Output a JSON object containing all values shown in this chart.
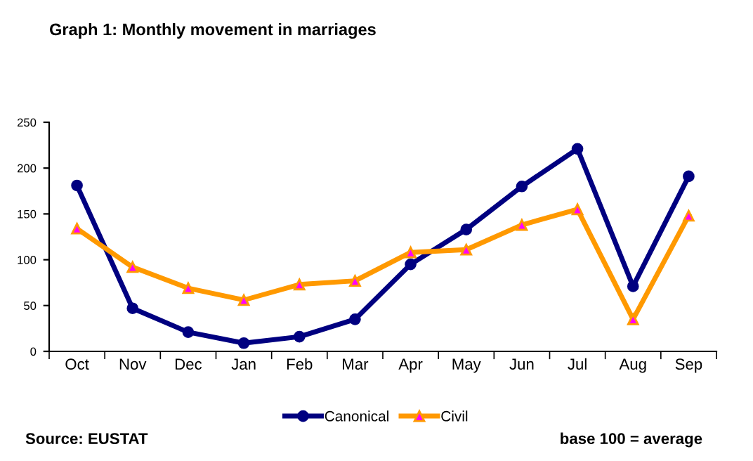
{
  "chart_data": {
    "type": "line",
    "title": "Graph 1: Monthly movement in marriages",
    "categories": [
      "Oct",
      "Nov",
      "Dec",
      "Jan",
      "Feb",
      "Mar",
      "Apr",
      "May",
      "Jun",
      "Jul",
      "Aug",
      "Sep"
    ],
    "series": [
      {
        "name": "Canonical",
        "color": "#000080",
        "marker": "circle",
        "values": [
          181,
          47,
          21,
          9,
          16,
          35,
          95,
          133,
          180,
          221,
          71,
          191
        ]
      },
      {
        "name": "Civil",
        "color": "#ff9900",
        "marker": "triangle",
        "values": [
          134,
          92,
          69,
          56,
          73,
          77,
          108,
          111,
          138,
          155,
          35,
          148
        ]
      }
    ],
    "ylim": [
      0,
      250
    ],
    "yticks": [
      0,
      50,
      100,
      150,
      200,
      250
    ],
    "grid": false,
    "legend": "bottom",
    "annotations": [
      "Source: EUSTAT",
      "base 100 = average"
    ]
  }
}
